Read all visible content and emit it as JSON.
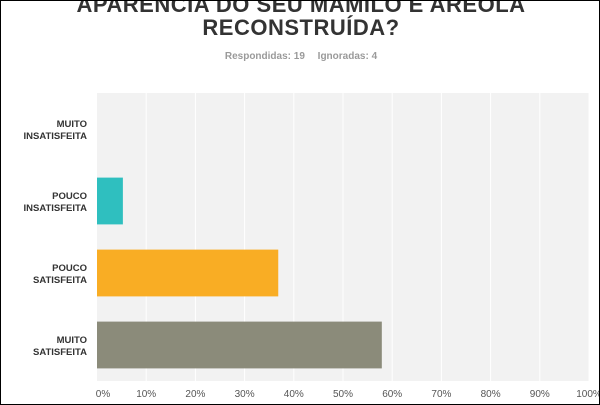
{
  "title_lines": [
    "APARÊNCIA DO SEU MAMILO E ARÉOLA",
    "RECONSTRUÍDA?"
  ],
  "subtitle": {
    "answered": "Respondidas: 19",
    "skipped": "Ignoradas: 4"
  },
  "colors": {
    "plot_background": "#f2f2f2",
    "gridline": "#ffffff",
    "text": "#333333"
  },
  "chart_data": {
    "type": "bar",
    "orientation": "horizontal",
    "categories": [
      [
        "MUITO",
        "INSATISFEITA"
      ],
      [
        "POUCO",
        "INSATISFEITA"
      ],
      [
        "POUCO",
        "SATISFEITA"
      ],
      [
        "MUITO",
        "SATISFEITA"
      ]
    ],
    "values": [
      0,
      5.26,
      36.84,
      57.89
    ],
    "bar_colors": [
      "#5a6e8c",
      "#2fbfbf",
      "#f9ad24",
      "#8b8b7a"
    ],
    "xlim": [
      0,
      100
    ],
    "xticks": [
      "0%",
      "10%",
      "20%",
      "30%",
      "40%",
      "50%",
      "60%",
      "70%",
      "80%",
      "90%",
      "100%"
    ],
    "grid": true,
    "legend": "none"
  }
}
